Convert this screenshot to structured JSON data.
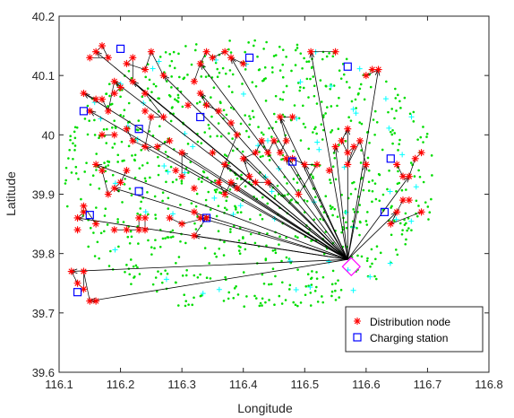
{
  "chart_data": {
    "type": "scatter",
    "title": "",
    "xlabel": "Longitude",
    "ylabel": "Latitude",
    "xlim": [
      116.1,
      116.8
    ],
    "ylim": [
      39.6,
      40.2
    ],
    "xticks": [
      "116.1",
      "116.2",
      "116.3",
      "116.4",
      "116.5",
      "116.6",
      "116.7",
      "116.8"
    ],
    "yticks": [
      "39.6",
      "39.7",
      "39.8",
      "39.9",
      "40",
      "40.1",
      "40.2"
    ],
    "grid": false,
    "legend_position": "bottom-right",
    "colors": {
      "distribution_node": "#ff0000",
      "charging_station": "#0000ff",
      "customer_points": "#00dd00",
      "secondary_points": "#00ffff",
      "depot": "#ff00ff",
      "routes": "#000000"
    },
    "depot": {
      "x": 116.57,
      "y": 39.79
    },
    "series": [
      {
        "name": "Distribution node",
        "marker": "asterisk",
        "points": [
          [
            116.12,
            39.77
          ],
          [
            116.13,
            39.75
          ],
          [
            116.14,
            39.74
          ],
          [
            116.14,
            39.77
          ],
          [
            116.15,
            39.72
          ],
          [
            116.16,
            39.72
          ],
          [
            116.13,
            39.86
          ],
          [
            116.14,
            39.87
          ],
          [
            116.14,
            39.88
          ],
          [
            116.16,
            39.85
          ],
          [
            116.16,
            39.95
          ],
          [
            116.17,
            39.94
          ],
          [
            116.18,
            39.9
          ],
          [
            116.19,
            39.91
          ],
          [
            116.2,
            39.92
          ],
          [
            116.21,
            39.94
          ],
          [
            116.19,
            39.84
          ],
          [
            116.21,
            39.84
          ],
          [
            116.23,
            39.84
          ],
          [
            116.23,
            39.86
          ],
          [
            116.16,
            40.14
          ],
          [
            116.17,
            40.15
          ],
          [
            116.18,
            40.13
          ],
          [
            116.15,
            40.13
          ],
          [
            116.14,
            40.07
          ],
          [
            116.16,
            40.06
          ],
          [
            116.17,
            40.06
          ],
          [
            116.18,
            40.04
          ],
          [
            116.19,
            40.09
          ],
          [
            116.2,
            40.08
          ],
          [
            116.19,
            40.07
          ],
          [
            116.21,
            40.01
          ],
          [
            116.22,
            39.99
          ],
          [
            116.24,
            39.98
          ],
          [
            116.25,
            40.03
          ],
          [
            116.27,
            40.03
          ],
          [
            116.24,
            40.07
          ],
          [
            116.22,
            40.09
          ],
          [
            116.22,
            40.13
          ],
          [
            116.21,
            40.12
          ],
          [
            116.24,
            40.11
          ],
          [
            116.25,
            40.14
          ],
          [
            116.27,
            40.1
          ],
          [
            116.26,
            39.98
          ],
          [
            116.28,
            39.99
          ],
          [
            116.32,
            40.09
          ],
          [
            116.33,
            40.12
          ],
          [
            116.34,
            40.14
          ],
          [
            116.35,
            40.13
          ],
          [
            116.37,
            40.14
          ],
          [
            116.38,
            40.13
          ],
          [
            116.4,
            40.12
          ],
          [
            116.33,
            40.07
          ],
          [
            116.34,
            40.05
          ],
          [
            116.36,
            40.04
          ],
          [
            116.38,
            40.02
          ],
          [
            116.39,
            40.0
          ],
          [
            116.37,
            39.95
          ],
          [
            116.36,
            39.92
          ],
          [
            116.37,
            39.9
          ],
          [
            116.38,
            39.92
          ],
          [
            116.39,
            39.91
          ],
          [
            116.41,
            39.93
          ],
          [
            116.4,
            39.96
          ],
          [
            116.42,
            39.97
          ],
          [
            116.43,
            39.99
          ],
          [
            116.44,
            39.97
          ],
          [
            116.45,
            39.99
          ],
          [
            116.46,
            39.97
          ],
          [
            116.47,
            39.99
          ],
          [
            116.46,
            40.03
          ],
          [
            116.48,
            40.03
          ],
          [
            116.48,
            39.96
          ],
          [
            116.5,
            39.95
          ],
          [
            116.52,
            39.95
          ],
          [
            116.49,
            39.9
          ],
          [
            116.51,
            40.14
          ],
          [
            116.55,
            40.14
          ],
          [
            116.57,
            40.01
          ],
          [
            116.56,
            39.99
          ],
          [
            116.57,
            39.97
          ],
          [
            116.58,
            39.98
          ],
          [
            116.57,
            39.95
          ],
          [
            116.59,
            39.99
          ],
          [
            116.6,
            39.95
          ],
          [
            116.61,
            40.11
          ],
          [
            116.62,
            40.11
          ],
          [
            116.6,
            40.1
          ],
          [
            116.65,
            39.95
          ],
          [
            116.66,
            39.93
          ],
          [
            116.67,
            39.93
          ],
          [
            116.68,
            39.96
          ],
          [
            116.69,
            39.97
          ],
          [
            116.67,
            39.89
          ],
          [
            116.66,
            39.89
          ],
          [
            116.65,
            39.87
          ],
          [
            116.64,
            39.85
          ],
          [
            116.69,
            39.87
          ],
          [
            116.3,
            39.97
          ],
          [
            116.3,
            39.93
          ],
          [
            116.32,
            39.87
          ],
          [
            116.33,
            39.86
          ],
          [
            116.24,
            39.86
          ],
          [
            116.24,
            39.84
          ],
          [
            116.32,
            39.83
          ],
          [
            116.34,
            39.86
          ],
          [
            116.3,
            39.85
          ],
          [
            116.28,
            39.86
          ],
          [
            116.44,
            39.92
          ],
          [
            116.42,
            39.92
          ],
          [
            116.32,
            39.91
          ],
          [
            116.54,
            39.94
          ],
          [
            116.47,
            39.96
          ],
          [
            116.35,
            39.97
          ],
          [
            116.29,
            39.94
          ],
          [
            116.31,
            40.05
          ],
          [
            116.55,
            39.98
          ],
          [
            116.17,
            40.0
          ],
          [
            116.19,
            40.0
          ],
          [
            116.24,
            40.04
          ],
          [
            116.15,
            40.04
          ],
          [
            116.13,
            39.84
          ]
        ]
      },
      {
        "name": "Charging station",
        "marker": "square",
        "points": [
          [
            116.2,
            40.145
          ],
          [
            116.41,
            40.13
          ],
          [
            116.57,
            40.115
          ],
          [
            116.14,
            40.04
          ],
          [
            116.33,
            40.03
          ],
          [
            116.23,
            40.01
          ],
          [
            116.48,
            39.955
          ],
          [
            116.64,
            39.96
          ],
          [
            116.23,
            39.905
          ],
          [
            116.15,
            39.865
          ],
          [
            116.34,
            39.86
          ],
          [
            116.63,
            39.87
          ],
          [
            116.13,
            39.735
          ]
        ]
      }
    ],
    "legend": [
      "Distribution node",
      "Charging station"
    ]
  }
}
